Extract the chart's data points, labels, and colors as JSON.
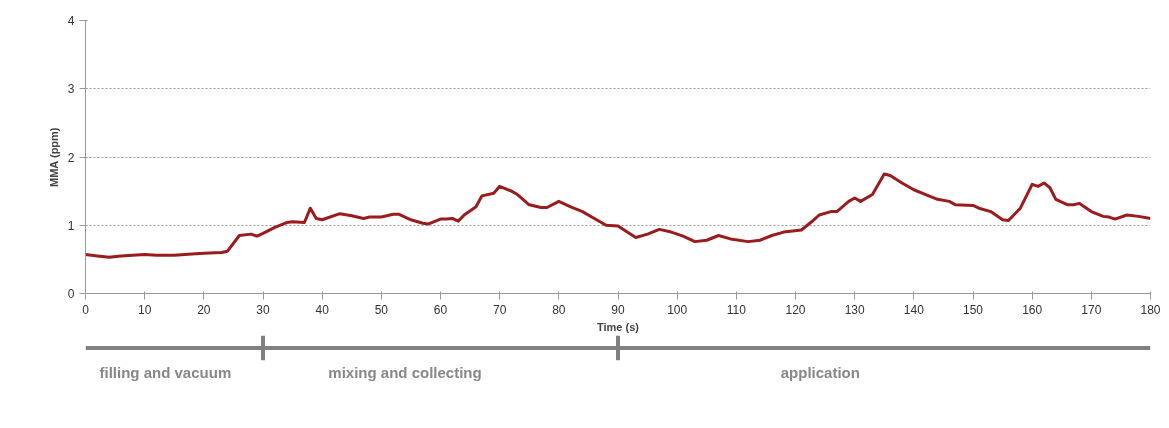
{
  "chart_data": {
    "type": "line",
    "xlabel": "Time (s)",
    "ylabel": "MMA (ppm)",
    "x": [
      0,
      2,
      4,
      6,
      8,
      10,
      12,
      15,
      18,
      20,
      23,
      24,
      26,
      28,
      29,
      30,
      32,
      34,
      35,
      37,
      38,
      39,
      40,
      43,
      45,
      47,
      48,
      50,
      52,
      53,
      55,
      57,
      58,
      60,
      61,
      62,
      63,
      64,
      66,
      67,
      69,
      70,
      72,
      73,
      75,
      77,
      78,
      80,
      82,
      84,
      86,
      88,
      90,
      93,
      95,
      97,
      99,
      101,
      103,
      105,
      107,
      109,
      112,
      114,
      116,
      118,
      121,
      123,
      124,
      126,
      127,
      129,
      130,
      131,
      133,
      135,
      136,
      138,
      140,
      142,
      144,
      146,
      147,
      150,
      151,
      153,
      155,
      156,
      158,
      160,
      161,
      162,
      163,
      164,
      166,
      167,
      168,
      170,
      172,
      173,
      174,
      176,
      178,
      180
    ],
    "series": [
      {
        "color": "#9b1c1c",
        "values": [
          0.57,
          0.55,
          0.53,
          0.55,
          0.56,
          0.57,
          0.56,
          0.56,
          0.58,
          0.59,
          0.6,
          0.62,
          0.85,
          0.87,
          0.84,
          0.88,
          0.97,
          1.04,
          1.05,
          1.04,
          1.25,
          1.1,
          1.08,
          1.17,
          1.14,
          1.1,
          1.12,
          1.12,
          1.16,
          1.16,
          1.08,
          1.03,
          1.02,
          1.09,
          1.09,
          1.1,
          1.06,
          1.15,
          1.27,
          1.43,
          1.47,
          1.57,
          1.5,
          1.45,
          1.3,
          1.26,
          1.26,
          1.35,
          1.27,
          1.2,
          1.1,
          1.0,
          0.99,
          0.82,
          0.87,
          0.94,
          0.9,
          0.84,
          0.76,
          0.78,
          0.85,
          0.8,
          0.76,
          0.78,
          0.85,
          0.9,
          0.93,
          1.07,
          1.15,
          1.2,
          1.2,
          1.35,
          1.4,
          1.35,
          1.45,
          1.75,
          1.73,
          1.62,
          1.52,
          1.45,
          1.38,
          1.35,
          1.3,
          1.29,
          1.25,
          1.2,
          1.08,
          1.07,
          1.25,
          1.6,
          1.57,
          1.62,
          1.55,
          1.38,
          1.3,
          1.3,
          1.32,
          1.2,
          1.13,
          1.12,
          1.09,
          1.15,
          1.13,
          1.1
        ]
      }
    ],
    "xlim": [
      0,
      180
    ],
    "xticks": [
      0,
      10,
      20,
      30,
      40,
      50,
      60,
      70,
      80,
      90,
      100,
      110,
      120,
      130,
      140,
      150,
      160,
      170,
      180
    ],
    "ylim": [
      0,
      4
    ],
    "yticks": [
      0,
      1,
      2,
      3,
      4
    ],
    "grid": "y",
    "marker": "none",
    "line_style": "solid",
    "annotations": [
      "filling and vacuum",
      "mixing and collecting",
      "application"
    ]
  }
}
